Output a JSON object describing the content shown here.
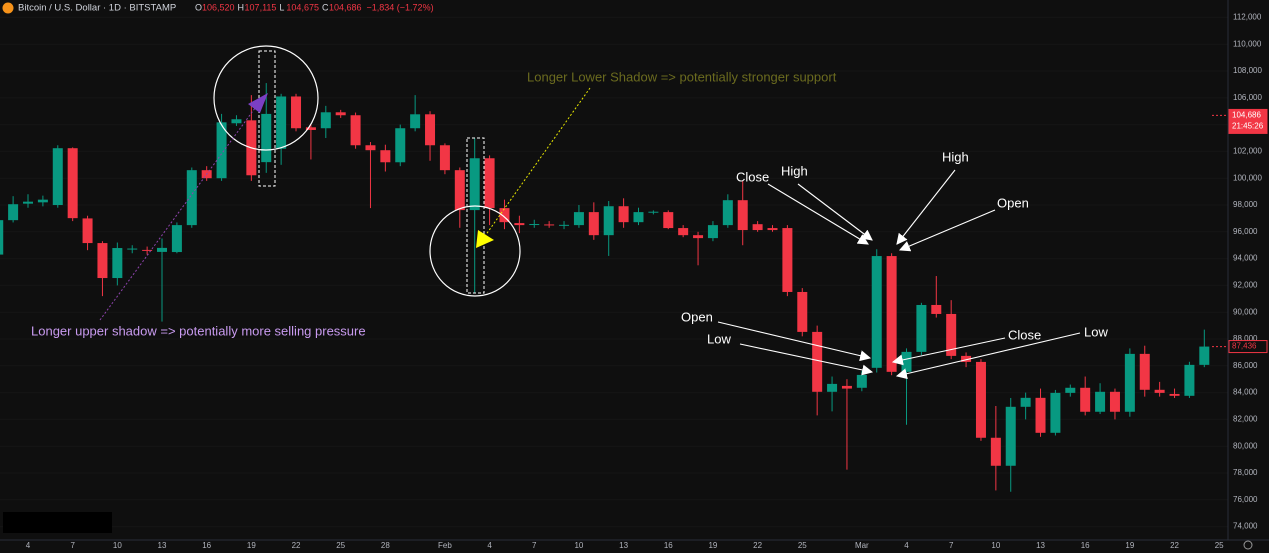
{
  "chart_data": {
    "type": "candlestick",
    "header": {
      "symbol": "Bitcoin / U.S. Dollar · 1D · BITSTAMP",
      "ohlc": [
        {
          "key": "O",
          "value": "106,520"
        },
        {
          "key": "H",
          "value": "107,115"
        },
        {
          "key": "L",
          "value": "104,675"
        },
        {
          "key": "C",
          "value": "104,686"
        }
      ],
      "change": "−1,834 (−1.72%)"
    },
    "categories": [
      null,
      null,
      "4",
      null,
      null,
      "7",
      null,
      null,
      "10",
      null,
      null,
      "13",
      null,
      null,
      "16",
      null,
      null,
      "19",
      null,
      null,
      "22",
      null,
      null,
      "25",
      null,
      null,
      "28",
      null,
      null,
      null,
      "Feb",
      null,
      null,
      "4",
      null,
      null,
      "7",
      null,
      null,
      "10",
      null,
      null,
      "13",
      null,
      null,
      "16",
      null,
      null,
      "19",
      null,
      null,
      "22",
      null,
      null,
      "25",
      null,
      null,
      null,
      "Mar",
      null,
      null,
      "4",
      null,
      null,
      "7",
      null,
      null,
      "10",
      null,
      null,
      "13",
      null,
      null,
      "16",
      null,
      null,
      "19",
      null,
      null,
      "22",
      null,
      null,
      "25"
    ],
    "open": [
      94300,
      96870,
      98100,
      98200,
      98000,
      102240,
      97000,
      95160,
      92550,
      94700,
      94650,
      94500,
      94490,
      96500,
      100600,
      100000,
      104100,
      104320,
      101200,
      102200,
      106100,
      103800,
      103730,
      104920,
      104700,
      102460,
      102090,
      101190,
      103730,
      104770,
      102460,
      100600,
      97620,
      101490,
      97770,
      96650,
      96570,
      96550,
      96500,
      96500,
      97470,
      95750,
      97910,
      96720,
      97450,
      97470,
      96280,
      95750,
      95530,
      96500,
      98360,
      96570,
      96280,
      96280,
      91510,
      88530,
      84060,
      84500,
      84360,
      85850,
      94190,
      85550,
      87040,
      90540,
      89870,
      86740,
      86290,
      80630,
      78540,
      82940,
      83610,
      81000,
      83980,
      84360,
      82570,
      84060,
      82570,
      86890,
      84210,
      83900,
      83760,
      86070,
      null
    ],
    "high": [
      97600,
      98660,
      98800,
      98700,
      102460,
      102300,
      97200,
      95300,
      95200,
      95000,
      94900,
      95500,
      96700,
      100800,
      100900,
      104800,
      104700,
      106200,
      107100,
      106300,
      106300,
      104000,
      105400,
      105100,
      104900,
      102700,
      102500,
      104000,
      106200,
      105000,
      102600,
      100800,
      102980,
      101700,
      98400,
      97200,
      96900,
      96800,
      96800,
      98000,
      98200,
      98300,
      98500,
      97800,
      97600,
      97600,
      96500,
      96000,
      96800,
      98800,
      99800,
      96800,
      96500,
      96500,
      91800,
      89000,
      85200,
      85000,
      85600,
      94700,
      94400,
      87300,
      90700,
      92700,
      90900,
      87000,
      86500,
      83000,
      83600,
      84000,
      84300,
      84200,
      84600,
      85200,
      84700,
      84300,
      87300,
      87500,
      84800,
      84300,
      86300,
      88700,
      null
    ],
    "low": [
      94000,
      96700,
      97800,
      97900,
      97800,
      96800,
      94630,
      91200,
      92000,
      94400,
      94300,
      89300,
      94400,
      96300,
      99800,
      99800,
      103900,
      99800,
      100400,
      101000,
      103500,
      101400,
      103000,
      104500,
      102200,
      97770,
      100500,
      100900,
      103500,
      101300,
      100300,
      96300,
      91430,
      96500,
      96200,
      95900,
      96300,
      96300,
      96200,
      96300,
      95400,
      94200,
      96300,
      96500,
      97300,
      96200,
      95600,
      93500,
      95300,
      96300,
      95000,
      96000,
      96000,
      91200,
      88200,
      82300,
      82600,
      78250,
      84100,
      85500,
      85300,
      81600,
      86800,
      89600,
      86500,
      85900,
      80400,
      76700,
      76600,
      82000,
      80700,
      80800,
      83700,
      82300,
      82400,
      82000,
      82200,
      83700,
      83700,
      83600,
      83600,
      85900,
      null
    ],
    "close": [
      96870,
      98060,
      98250,
      98400,
      102240,
      97020,
      95160,
      92550,
      94790,
      94750,
      94600,
      94800,
      96500,
      100600,
      100000,
      104170,
      104400,
      100220,
      104800,
      106100,
      103730,
      103600,
      104920,
      104700,
      102460,
      102090,
      101190,
      103730,
      104770,
      102460,
      100600,
      97620,
      101490,
      97770,
      96720,
      96500,
      96580,
      96500,
      96520,
      97470,
      95750,
      97910,
      96720,
      97470,
      97500,
      96280,
      95750,
      95530,
      96500,
      98360,
      96130,
      96130,
      96130,
      91510,
      88530,
      84060,
      84650,
      84300,
      85320,
      94190,
      85550,
      87040,
      90540,
      89870,
      86740,
      86290,
      80630,
      78540,
      82940,
      83610,
      81000,
      83980,
      84360,
      82570,
      84060,
      82570,
      86890,
      84210,
      83980,
      83760,
      86070,
      87436,
      null
    ],
    "up_color": "#089981",
    "down_color": "#f23645",
    "ylim": [
      73000,
      113300
    ],
    "yticks": [
      {
        "value": 74000,
        "label": "74,000"
      },
      {
        "value": 76000,
        "label": "76,000"
      },
      {
        "value": 78000,
        "label": "78,000"
      },
      {
        "value": 80000,
        "label": "80,000"
      },
      {
        "value": 82000,
        "label": "82,000"
      },
      {
        "value": 84000,
        "label": "84,000"
      },
      {
        "value": 86000,
        "label": "86,000"
      },
      {
        "value": 88000,
        "label": "88,000"
      },
      {
        "value": 90000,
        "label": "90,000"
      },
      {
        "value": 92000,
        "label": "92,000"
      },
      {
        "value": 94000,
        "label": "94,000"
      },
      {
        "value": 96000,
        "label": "96,000"
      },
      {
        "value": 98000,
        "label": "98,000"
      },
      {
        "value": 100000,
        "label": "100,000"
      },
      {
        "value": 102000,
        "label": "102,000"
      },
      {
        "value": 104000,
        "label": "104,000"
      },
      {
        "value": 106000,
        "label": "106,000"
      },
      {
        "value": 108000,
        "label": "108,000"
      },
      {
        "value": 110000,
        "label": "110,000"
      },
      {
        "value": 112000,
        "label": "112,000"
      }
    ],
    "price_markers": [
      {
        "value": 104686,
        "label": "104,686",
        "countdown": "21:45:26"
      },
      {
        "value": 87436,
        "label": "87,436"
      }
    ],
    "annotations": [
      "Longer Lower Shadow => potentially stronger support",
      "Longer upper shadow => potentially more selling pressure",
      "Close",
      "High",
      "High",
      "Open",
      "Open",
      "Low",
      "Close",
      "Low"
    ]
  }
}
